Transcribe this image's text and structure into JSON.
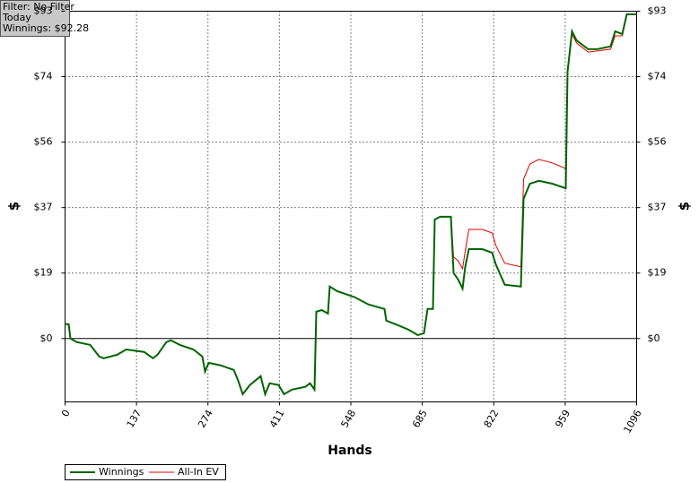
{
  "chart_data": {
    "type": "line",
    "annotations": [
      "Filter: No Filter",
      "Today",
      "Winnings: $92.28"
    ],
    "x_label": "Hands",
    "y_label": "$",
    "y2_label": "$",
    "x": [
      0,
      6.9,
      10.3,
      22.4,
      48.2,
      65.4,
      74.1,
      99.9,
      117.1,
      151.4,
      168.6,
      177.3,
      194.5,
      203.1,
      220.3,
      246.0,
      263.3,
      268.4,
      275.3,
      297.7,
      323.5,
      332.1,
      340.7,
      354.5,
      375.1,
      383.7,
      392.3,
      409.5,
      419.8,
      435.3,
      461.1,
      469.7,
      478.3,
      481.8,
      492.1,
      504.2,
      507.6,
      521.3,
      555.8,
      581.6,
      612.5,
      616.0,
      633.2,
      659.0,
      676.2,
      688.2,
      695.1,
      705.4,
      708.9,
      719.2,
      739.9,
      745.0,
      753.6,
      762.2,
      767.4,
      774.3,
      800.1,
      819.0,
      825.9,
      843.1,
      874.1,
      879.2,
      891.3,
      908.5,
      934.3,
      960.1,
      963.5,
      972.1,
      980.7,
      1003.1,
      1020.3,
      1046.1,
      1054.7,
      1068.5,
      1077.1,
      1096
    ],
    "series": [
      {
        "name": "Winnings",
        "color": "#006400",
        "width": 2,
        "values": [
          4.1,
          4.1,
          0,
          -1.0,
          -1.8,
          -5.1,
          -5.6,
          -4.6,
          -3.1,
          -3.8,
          -5.6,
          -4.6,
          -1.0,
          -0.5,
          -1.8,
          -3.1,
          -5.1,
          -9.4,
          -6.9,
          -7.6,
          -8.9,
          -12.0,
          -15.8,
          -13.2,
          -10.7,
          -15.8,
          -12.7,
          -13.2,
          -15.8,
          -14.5,
          -13.7,
          -12.7,
          -14.5,
          7.6,
          8.1,
          7.1,
          14.8,
          13.5,
          11.7,
          9.7,
          8.4,
          5.1,
          4.1,
          2.5,
          1.0,
          1.5,
          8.4,
          8.4,
          33.8,
          34.6,
          34.6,
          18.6,
          16.8,
          14.2,
          20.4,
          25.4,
          25.4,
          24.4,
          21.1,
          15.3,
          14.8,
          39.7,
          44.0,
          44.8,
          44.0,
          42.7,
          75.8,
          87.3,
          84.7,
          82.2,
          82.2,
          83.0,
          87.3,
          86.5,
          92.1,
          92.1
        ]
      },
      {
        "name": "All-In EV",
        "color": "#e00000",
        "width": 1,
        "values": [
          4.1,
          4.1,
          0,
          -1.0,
          -1.8,
          -5.1,
          -5.6,
          -4.6,
          -3.1,
          -3.8,
          -5.6,
          -4.6,
          -1.0,
          -0.5,
          -1.8,
          -3.1,
          -5.1,
          -9.4,
          -6.9,
          -7.6,
          -8.9,
          -12.0,
          -15.8,
          -13.2,
          -10.7,
          -15.8,
          -12.7,
          -13.2,
          -15.8,
          -14.5,
          -13.7,
          -12.7,
          -14.5,
          7.6,
          8.1,
          7.1,
          14.8,
          13.5,
          11.7,
          9.7,
          8.4,
          5.1,
          4.1,
          2.5,
          1.0,
          1.5,
          8.4,
          8.4,
          33.8,
          34.6,
          34.6,
          23.2,
          22.1,
          19.8,
          24.9,
          31.0,
          31.0,
          30.0,
          26.5,
          21.4,
          20.4,
          45.3,
          49.6,
          50.9,
          49.9,
          48.3,
          76.6,
          86.5,
          84.0,
          81.4,
          81.7,
          82.2,
          86.0,
          86.0,
          92.1,
          92.1
        ]
      }
    ],
    "xlim": [
      0,
      1096
    ],
    "xticks": [
      0,
      137,
      274,
      411,
      548,
      685,
      822,
      959,
      1096
    ],
    "ylim": [
      -18,
      93
    ],
    "yticks": [
      {
        "value": 0,
        "label": "$0"
      },
      {
        "value": 18.6,
        "label": "$19"
      },
      {
        "value": 37.2,
        "label": "$37"
      },
      {
        "value": 55.8,
        "label": "$56"
      },
      {
        "value": 74.4,
        "label": "$74"
      },
      {
        "value": 93,
        "label": "$93"
      }
    ],
    "grid": true
  }
}
